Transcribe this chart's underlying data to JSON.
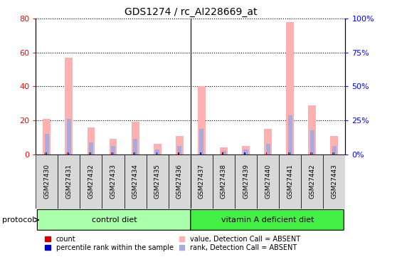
{
  "title": "GDS1274 / rc_AI228669_at",
  "samples": [
    "GSM27430",
    "GSM27431",
    "GSM27432",
    "GSM27433",
    "GSM27434",
    "GSM27435",
    "GSM27436",
    "GSM27437",
    "GSM27438",
    "GSM27439",
    "GSM27440",
    "GSM27441",
    "GSM27442",
    "GSM27443"
  ],
  "value_absent": [
    21,
    57,
    16,
    9,
    19,
    6,
    11,
    40,
    4,
    5,
    15,
    78,
    29,
    11
  ],
  "rank_absent": [
    12,
    21,
    7,
    5,
    9,
    3,
    5,
    15,
    2,
    3,
    6,
    23,
    14,
    5
  ],
  "count": [
    1,
    1,
    1,
    1,
    1,
    1,
    1,
    1,
    1,
    1,
    1,
    1,
    1,
    1
  ],
  "percentile": [
    1,
    1,
    1,
    1,
    1,
    1,
    1,
    1,
    1,
    1,
    1,
    1,
    1,
    1
  ],
  "ylim_left": [
    0,
    80
  ],
  "ylim_right": [
    0,
    100
  ],
  "yticks_left": [
    0,
    20,
    40,
    60,
    80
  ],
  "yticks_right": [
    0,
    25,
    50,
    75,
    100
  ],
  "ytick_labels_right": [
    "0%",
    "25%",
    "50%",
    "75%",
    "100%"
  ],
  "control_diet_samples": 7,
  "control_diet_label": "control diet",
  "vitA_diet_label": "vitamin A deficient diet",
  "protocol_label": "protocol",
  "color_value_absent": "#ffb0b0",
  "color_rank_absent": "#aaaadd",
  "color_count": "#cc0000",
  "color_percentile": "#0000cc",
  "bg_color": "#ffffff",
  "plot_bg": "#ffffff",
  "grid_color": "#000000",
  "control_diet_color": "#aaffaa",
  "vitA_diet_color": "#44ee44",
  "tick_label_bg": "#d8d8d8",
  "legend_labels": [
    "count",
    "percentile rank within the sample",
    "value, Detection Call = ABSENT",
    "rank, Detection Call = ABSENT"
  ],
  "legend_colors": [
    "#cc0000",
    "#0000cc",
    "#ffb0b0",
    "#aaaadd"
  ]
}
